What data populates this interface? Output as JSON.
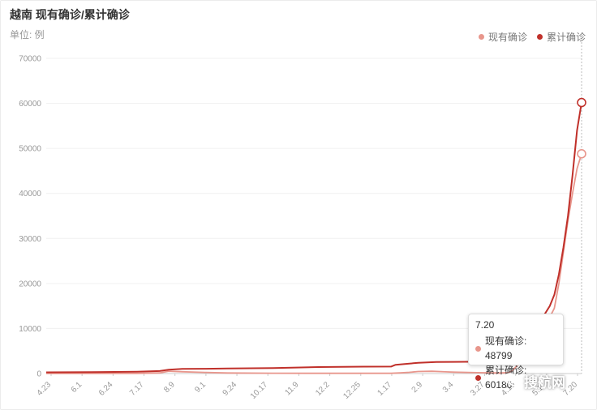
{
  "header": {
    "title": "越南 现有确诊/累计确诊",
    "unit": "单位: 例"
  },
  "legend": [
    {
      "name": "现有确诊",
      "color": "#e8968c"
    },
    {
      "name": "累计确诊",
      "color": "#c0302a"
    }
  ],
  "tooltip": {
    "date": "7.20",
    "rows": [
      {
        "label": "现有确诊: 48799",
        "color": "#e8968c"
      },
      {
        "label": "累计确诊: 60180",
        "color": "#c0302a"
      }
    ]
  },
  "watermark": {
    "text": "搜航网",
    "icon": "wechat-icon"
  },
  "chart_data": {
    "type": "line",
    "x_tick_labels": [
      "4.23",
      "6.1",
      "6.24",
      "7.17",
      "8.9",
      "9.1",
      "9.24",
      "10.17",
      "11.9",
      "12.2",
      "12.25",
      "1.17",
      "2.9",
      "3.4",
      "3.27",
      "4.19",
      "5.12",
      "7.20"
    ],
    "ylim": [
      0,
      70000
    ],
    "y_ticks": [
      0,
      10000,
      20000,
      30000,
      40000,
      50000,
      60000,
      70000
    ],
    "grid": true,
    "legend_position": "top-right",
    "x_index_range": [
      0,
      118
    ],
    "series": [
      {
        "name": "现有确诊",
        "color": "#e8968c",
        "points": [
          [
            0,
            30
          ],
          [
            10,
            20
          ],
          [
            20,
            30
          ],
          [
            25,
            150
          ],
          [
            27,
            520
          ],
          [
            30,
            400
          ],
          [
            35,
            250
          ],
          [
            40,
            120
          ],
          [
            50,
            70
          ],
          [
            60,
            50
          ],
          [
            70,
            50
          ],
          [
            76,
            60
          ],
          [
            78,
            150
          ],
          [
            80,
            270
          ],
          [
            82,
            450
          ],
          [
            85,
            500
          ],
          [
            88,
            370
          ],
          [
            90,
            300
          ],
          [
            95,
            200
          ],
          [
            98,
            150
          ],
          [
            100,
            130
          ],
          [
            102,
            200
          ],
          [
            103,
            900
          ],
          [
            104,
            2000
          ],
          [
            105,
            3500
          ],
          [
            106,
            5000
          ],
          [
            107,
            7200
          ],
          [
            108,
            9200
          ],
          [
            109,
            10500
          ],
          [
            110,
            11500
          ],
          [
            111,
            12500
          ],
          [
            112,
            14500
          ],
          [
            113,
            20000
          ],
          [
            114,
            27000
          ],
          [
            115,
            34000
          ],
          [
            116,
            40000
          ],
          [
            117,
            45500
          ],
          [
            118,
            48799
          ]
        ]
      },
      {
        "name": "累计确诊",
        "color": "#c0302a",
        "points": [
          [
            0,
            270
          ],
          [
            10,
            330
          ],
          [
            20,
            420
          ],
          [
            25,
            560
          ],
          [
            27,
            850
          ],
          [
            30,
            1030
          ],
          [
            35,
            1060
          ],
          [
            40,
            1120
          ],
          [
            50,
            1210
          ],
          [
            60,
            1440
          ],
          [
            70,
            1530
          ],
          [
            76,
            1550
          ],
          [
            77,
            1950
          ],
          [
            79,
            2100
          ],
          [
            82,
            2400
          ],
          [
            86,
            2550
          ],
          [
            90,
            2600
          ],
          [
            95,
            2630
          ],
          [
            98,
            2700
          ],
          [
            100,
            2810
          ],
          [
            102,
            2900
          ],
          [
            103,
            3500
          ],
          [
            104,
            4600
          ],
          [
            105,
            6100
          ],
          [
            106,
            7600
          ],
          [
            107,
            9000
          ],
          [
            108,
            10500
          ],
          [
            109,
            12000
          ],
          [
            110,
            13400
          ],
          [
            111,
            15000
          ],
          [
            112,
            17500
          ],
          [
            113,
            22000
          ],
          [
            114,
            28000
          ],
          [
            115,
            35000
          ],
          [
            116,
            44000
          ],
          [
            117,
            54000
          ],
          [
            118,
            60180
          ]
        ]
      }
    ]
  }
}
